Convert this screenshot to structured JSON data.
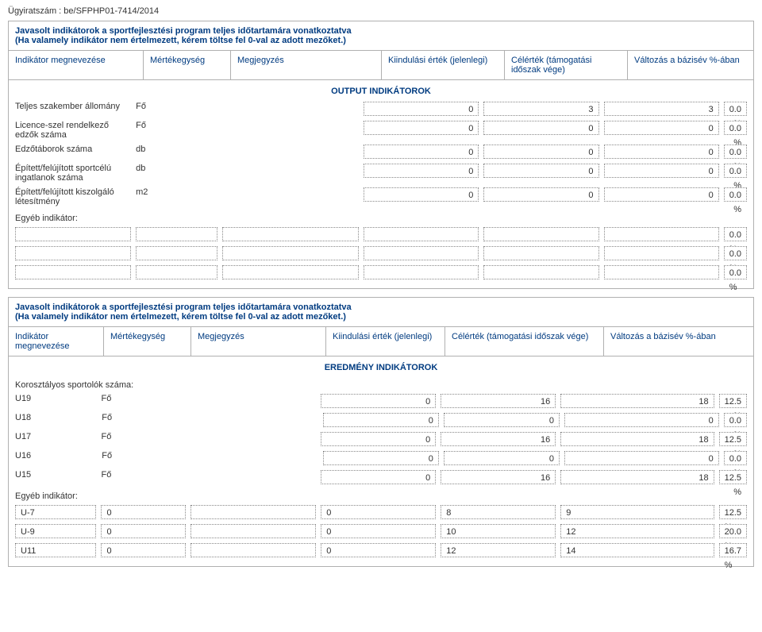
{
  "case_no": "Ügyiratszám : be/SFPHP01-7414/2014",
  "section1": {
    "title": "Javasolt indikátorok a sportfejlesztési program teljes időtartamára vonatkoztatva",
    "subtitle": "(Ha valamely indikátor nem értelmezett, kérem töltse fel 0-val az adott mezőket.)",
    "headers": {
      "name": "Indikátor megnevezése",
      "unit": "Mértékegység",
      "note": "Megjegyzés",
      "start": "Kiindulási érték (jelenlegi)",
      "target": "Célérték (támogatási időszak vége)",
      "change": "Változás a bázisév %-ában"
    },
    "block_title": "OUTPUT INDIKÁTOROK",
    "rows": [
      {
        "label": "Teljes szakember állomány",
        "unit": "Fő",
        "start": "0",
        "target": "3",
        "target2": "3",
        "pct": "0.0 %"
      },
      {
        "label": "Licence-szel rendelkező edzők száma",
        "unit": "Fő",
        "start": "0",
        "target": "0",
        "target2": "0",
        "pct": "0.0 %"
      },
      {
        "label": "Edzőtáborok száma",
        "unit": "db",
        "start": "0",
        "target": "0",
        "target2": "0",
        "pct": "0.0 %"
      },
      {
        "label": "Épített/felújított sportcélú ingatlanok száma",
        "unit": "db",
        "start": "0",
        "target": "0",
        "target2": "0",
        "pct": "0.0 %"
      },
      {
        "label": "Épített/felújított kiszolgáló létesítmény",
        "unit": "m2",
        "start": "0",
        "target": "0",
        "target2": "0",
        "pct": "0.0 %"
      }
    ],
    "other_label": "Egyéb indikátor:",
    "blanks": [
      {
        "pct": "0.0 %"
      },
      {
        "pct": "0.0 %"
      },
      {
        "pct": "0.0 %"
      }
    ]
  },
  "section2": {
    "title": "Javasolt indikátorok a sportfejlesztési program teljes időtartamára vonatkoztatva",
    "subtitle": "(Ha valamely indikátor nem értelmezett, kérem töltse fel 0-val az adott mezőket.)",
    "headers": {
      "name": "Indikátor megnevezése",
      "unit": "Mértékegység",
      "note": "Megjegyzés",
      "start": "Kiindulási érték (jelenlegi)",
      "target": "Célérték (támogatási időszak vége)",
      "change": "Változás a bázisév %-ában"
    },
    "block_title": "EREDMÉNY INDIKÁTOROK",
    "age_title": "Korosztályos sportolók száma:",
    "rows": [
      {
        "label": "U19",
        "unit": "Fő",
        "start": "0",
        "target": "16",
        "target2": "18",
        "pct": "12.5 %"
      },
      {
        "label": "U18",
        "unit": "Fő",
        "start": "0",
        "target": "0",
        "target2": "0",
        "pct": "0.0 %"
      },
      {
        "label": "U17",
        "unit": "Fő",
        "start": "0",
        "target": "16",
        "target2": "18",
        "pct": "12.5 %"
      },
      {
        "label": "U16",
        "unit": "Fő",
        "start": "0",
        "target": "0",
        "target2": "0",
        "pct": "0.0 %"
      },
      {
        "label": "U15",
        "unit": "Fő",
        "start": "0",
        "target": "16",
        "target2": "18",
        "pct": "12.5 %"
      }
    ],
    "other_label": "Egyéb indikátor:",
    "other_rows": [
      {
        "label": "U-7",
        "unit": "0",
        "start": "0",
        "target": "8",
        "target2": "9",
        "pct": "12.5 %"
      },
      {
        "label": "U-9",
        "unit": "0",
        "start": "0",
        "target": "10",
        "target2": "12",
        "pct": "20.0 %"
      },
      {
        "label": "U11",
        "unit": "0",
        "start": "0",
        "target": "12",
        "target2": "14",
        "pct": "16.7 %"
      }
    ]
  }
}
